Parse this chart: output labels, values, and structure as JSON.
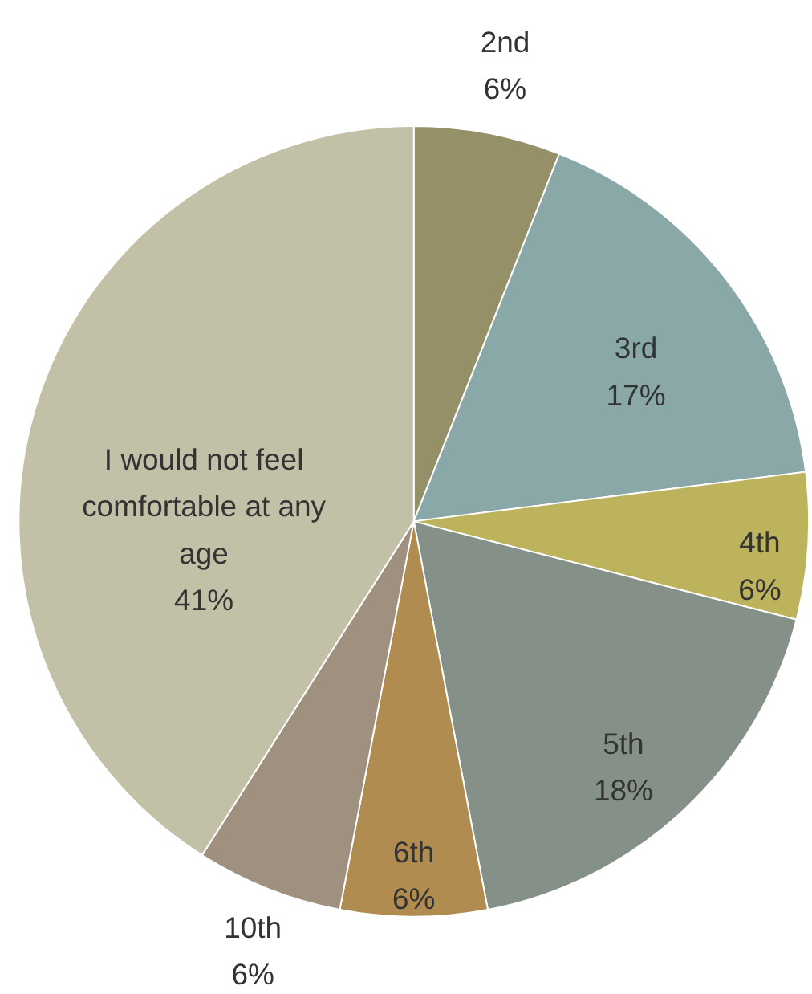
{
  "chart_data": {
    "type": "pie",
    "categories": [
      "2nd",
      "3rd",
      "4th",
      "5th",
      "6th",
      "10th",
      "I would not feel comfortable at any age"
    ],
    "values": [
      6,
      17,
      6,
      18,
      6,
      6,
      41
    ],
    "value_labels": [
      "6%",
      "17%",
      "6%",
      "18%",
      "6%",
      "6%",
      "41%"
    ],
    "colors": [
      "#969068",
      "#8aa8a8",
      "#bdb35c",
      "#849088",
      "#b08c50",
      "#a09080",
      "#c3c0a8"
    ],
    "legend": false
  }
}
